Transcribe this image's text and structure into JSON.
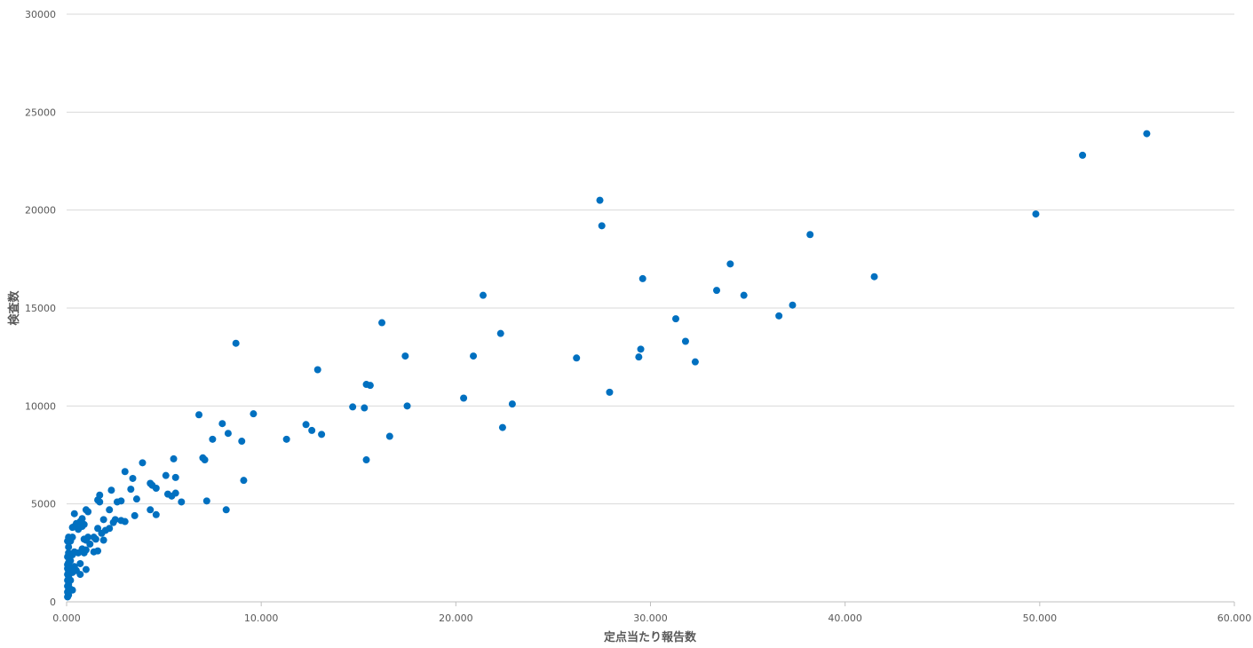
{
  "chart_data": {
    "type": "scatter",
    "title": "",
    "xlabel": "定点当たり報告数",
    "ylabel": "検査数",
    "xlim": [
      0,
      60
    ],
    "ylim": [
      0,
      30000
    ],
    "grid": true,
    "legend": "none",
    "x_ticks": [
      {
        "value": 0,
        "label": "0.000"
      },
      {
        "value": 10,
        "label": "10.000"
      },
      {
        "value": 20,
        "label": "20.000"
      },
      {
        "value": 30,
        "label": "30.000"
      },
      {
        "value": 40,
        "label": "40.000"
      },
      {
        "value": 50,
        "label": "50.000"
      },
      {
        "value": 60,
        "label": "60.000"
      }
    ],
    "y_ticks": [
      {
        "value": 0,
        "label": "0"
      },
      {
        "value": 5000,
        "label": "5000"
      },
      {
        "value": 10000,
        "label": "10000"
      },
      {
        "value": 15000,
        "label": "15000"
      },
      {
        "value": 20000,
        "label": "20000"
      },
      {
        "value": 25000,
        "label": "25000"
      },
      {
        "value": 30000,
        "label": "30000"
      }
    ],
    "series": [
      {
        "color": "#0070c0",
        "points": [
          [
            55.5,
            23900
          ],
          [
            52.2,
            22800
          ],
          [
            49.8,
            19800
          ],
          [
            41.5,
            16600
          ],
          [
            38.2,
            18750
          ],
          [
            37.3,
            15150
          ],
          [
            36.6,
            14600
          ],
          [
            34.8,
            15650
          ],
          [
            34.1,
            17250
          ],
          [
            33.4,
            15900
          ],
          [
            32.3,
            12250
          ],
          [
            31.8,
            13300
          ],
          [
            31.3,
            14450
          ],
          [
            29.6,
            16500
          ],
          [
            29.5,
            12900
          ],
          [
            29.4,
            12500
          ],
          [
            27.9,
            10700
          ],
          [
            27.5,
            19200
          ],
          [
            27.4,
            20500
          ],
          [
            26.2,
            12450
          ],
          [
            22.9,
            10100
          ],
          [
            22.4,
            8900
          ],
          [
            22.3,
            13700
          ],
          [
            21.4,
            15650
          ],
          [
            20.9,
            12550
          ],
          [
            20.4,
            10400
          ],
          [
            17.5,
            10000
          ],
          [
            17.4,
            12550
          ],
          [
            16.6,
            8450
          ],
          [
            16.2,
            14250
          ],
          [
            15.6,
            11050
          ],
          [
            15.4,
            11100
          ],
          [
            15.4,
            7250
          ],
          [
            15.3,
            9900
          ],
          [
            14.7,
            9950
          ],
          [
            13.1,
            8550
          ],
          [
            12.9,
            11850
          ],
          [
            12.6,
            8750
          ],
          [
            12.3,
            9050
          ],
          [
            11.3,
            8300
          ],
          [
            9.6,
            9600
          ],
          [
            9.1,
            6200
          ],
          [
            9.0,
            8200
          ],
          [
            8.7,
            13200
          ],
          [
            8.3,
            8600
          ],
          [
            8.2,
            4700
          ],
          [
            8.0,
            9100
          ],
          [
            7.5,
            8300
          ],
          [
            7.2,
            5150
          ],
          [
            7.1,
            7250
          ],
          [
            7.0,
            7350
          ],
          [
            6.8,
            9550
          ],
          [
            5.9,
            5100
          ],
          [
            5.6,
            6350
          ],
          [
            5.6,
            5550
          ],
          [
            5.5,
            7300
          ],
          [
            5.4,
            5400
          ],
          [
            5.2,
            5500
          ],
          [
            5.1,
            6450
          ],
          [
            4.6,
            4450
          ],
          [
            4.6,
            5800
          ],
          [
            4.4,
            5950
          ],
          [
            4.3,
            6050
          ],
          [
            4.3,
            4700
          ],
          [
            3.9,
            7100
          ],
          [
            3.6,
            5250
          ],
          [
            3.5,
            4400
          ],
          [
            3.4,
            6300
          ],
          [
            3.3,
            5750
          ],
          [
            3.0,
            6650
          ],
          [
            3.0,
            4100
          ],
          [
            2.8,
            4150
          ],
          [
            2.8,
            5150
          ],
          [
            2.6,
            5100
          ],
          [
            2.5,
            4200
          ],
          [
            2.4,
            4050
          ],
          [
            2.3,
            5700
          ],
          [
            2.2,
            4700
          ],
          [
            2.2,
            3750
          ],
          [
            2.0,
            3650
          ],
          [
            1.9,
            4200
          ],
          [
            1.9,
            3150
          ],
          [
            1.8,
            3500
          ],
          [
            1.7,
            5450
          ],
          [
            1.7,
            5100
          ],
          [
            1.6,
            5200
          ],
          [
            1.6,
            3750
          ],
          [
            1.6,
            2600
          ],
          [
            1.5,
            3200
          ],
          [
            1.4,
            3300
          ],
          [
            1.4,
            2550
          ],
          [
            1.2,
            2950
          ],
          [
            1.1,
            4600
          ],
          [
            1.1,
            3300
          ],
          [
            1.0,
            4700
          ],
          [
            1.0,
            3150
          ],
          [
            1.0,
            2650
          ],
          [
            1.0,
            1650
          ],
          [
            0.9,
            3950
          ],
          [
            0.9,
            3200
          ],
          [
            0.9,
            2500
          ],
          [
            0.8,
            4250
          ],
          [
            0.8,
            3850
          ],
          [
            0.8,
            2700
          ],
          [
            0.7,
            4100
          ],
          [
            0.7,
            1950
          ],
          [
            0.7,
            1400
          ],
          [
            0.6,
            3700
          ],
          [
            0.6,
            2500
          ],
          [
            0.5,
            4000
          ],
          [
            0.5,
            1600
          ],
          [
            0.4,
            4500
          ],
          [
            0.4,
            3850
          ],
          [
            0.4,
            2550
          ],
          [
            0.4,
            1800
          ],
          [
            0.3,
            3800
          ],
          [
            0.3,
            3300
          ],
          [
            0.3,
            2400
          ],
          [
            0.3,
            1500
          ],
          [
            0.3,
            600
          ],
          [
            0.2,
            3100
          ],
          [
            0.2,
            2100
          ],
          [
            0.2,
            1500
          ],
          [
            0.2,
            1100
          ],
          [
            0.15,
            3200
          ],
          [
            0.15,
            1800
          ],
          [
            0.15,
            700
          ],
          [
            0.1,
            3300
          ],
          [
            0.1,
            2800
          ],
          [
            0.1,
            2500
          ],
          [
            0.1,
            2000
          ],
          [
            0.1,
            1600
          ],
          [
            0.1,
            1300
          ],
          [
            0.1,
            900
          ],
          [
            0.1,
            600
          ],
          [
            0.1,
            350
          ],
          [
            0.05,
            3100
          ],
          [
            0.05,
            2300
          ],
          [
            0.05,
            1900
          ],
          [
            0.05,
            1700
          ],
          [
            0.05,
            1400
          ],
          [
            0.05,
            1100
          ],
          [
            0.05,
            800
          ],
          [
            0.05,
            500
          ],
          [
            0.05,
            250
          ]
        ]
      }
    ]
  }
}
